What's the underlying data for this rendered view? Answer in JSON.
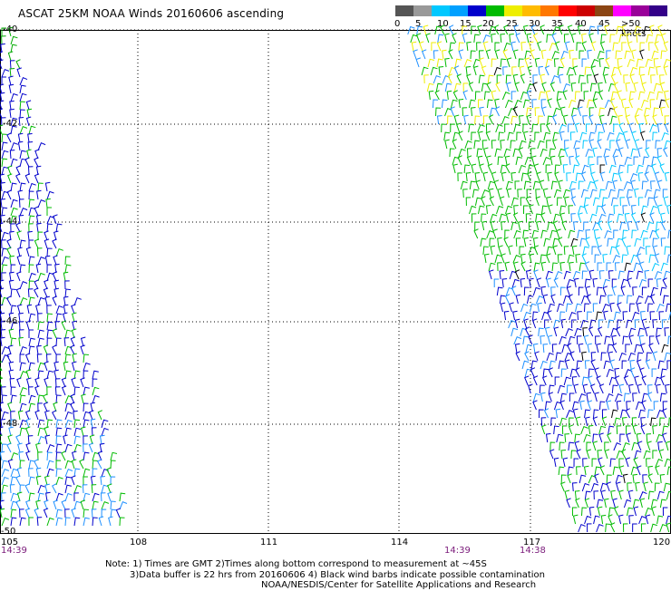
{
  "title": "ASCAT 25KM NOAA Winds 20160606 ascending",
  "scale": {
    "labels": [
      "0",
      "5",
      "10",
      "15",
      "20",
      "25",
      "30",
      "35",
      "40",
      "45",
      ">50 knots"
    ],
    "colors": [
      "#555555",
      "#999999",
      "#00c8ff",
      "#00a0ff",
      "#0000cc",
      "#00bb00",
      "#eeee00",
      "#ffbb00",
      "#ff7700",
      "#ff0000",
      "#cc0000",
      "#8b4513",
      "#ff00ff",
      "#990099",
      "#330088"
    ]
  },
  "axes": {
    "lat_labels": [
      "-40",
      "-42",
      "-44",
      "-46",
      "-48",
      "-50"
    ],
    "lon_labels": [
      "105",
      "108",
      "111",
      "114",
      "117",
      "120"
    ]
  },
  "times": [
    "14:39",
    "14:39",
    "14:38"
  ],
  "notes": [
    "Note: 1) Times are GMT 2)Times along bottom correspond to measurement at ~45S",
    "3)Data buffer is 22 hrs from 20160606 4) Black wind barbs indicate possible contamination",
    "NOAA/NESDIS/Center for Satellite Applications and Research"
  ]
}
